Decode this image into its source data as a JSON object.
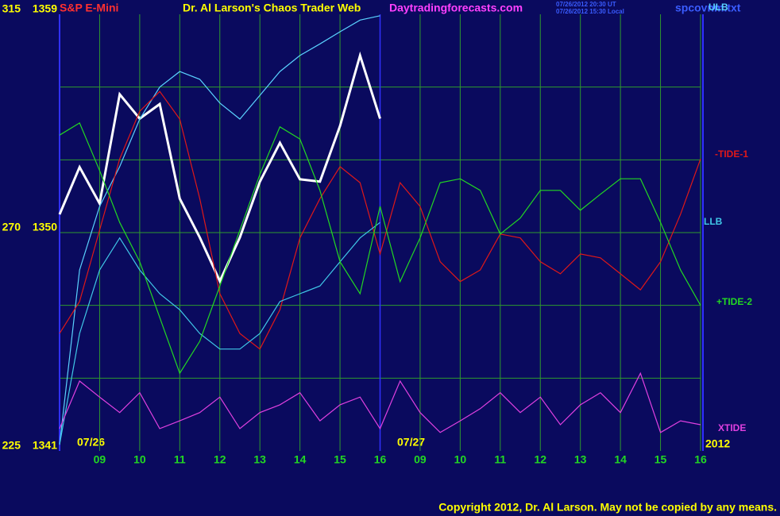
{
  "header": {
    "title": "Dr. Al Larson's Chaos Trader Web",
    "site": "Daytradingforecasts.com",
    "time_ut": "07/26/2012 20:30 UT",
    "time_local": "07/26/2012 15:30 Local",
    "file": "spcovnm.txt"
  },
  "footer": {
    "copyright": "Copyright 2012, Dr. Al Larson. May not be copied by any means."
  },
  "chart_data": {
    "type": "line",
    "annotations": {
      "day1": "07/26",
      "day2": "07/27",
      "year": "2012"
    },
    "x": [
      0,
      0.5,
      1,
      1.5,
      2,
      2.5,
      3,
      3.5,
      4,
      4.5,
      5,
      5.5,
      6,
      6.5,
      7,
      7.5,
      8,
      8.5,
      9,
      9.5,
      10,
      10.5,
      11,
      11.5,
      12,
      12.5,
      13,
      13.5,
      14,
      14.5,
      15,
      15.5,
      16
    ],
    "xlim": [
      0,
      16
    ],
    "xticks": [
      {
        "value": 1,
        "label": "09"
      },
      {
        "value": 2,
        "label": "10"
      },
      {
        "value": 3,
        "label": "11"
      },
      {
        "value": 4,
        "label": "12"
      },
      {
        "value": 5,
        "label": "13"
      },
      {
        "value": 6,
        "label": "14"
      },
      {
        "value": 7,
        "label": "15"
      },
      {
        "value": 8,
        "label": "16"
      },
      {
        "value": 9,
        "label": "09"
      },
      {
        "value": 10,
        "label": "10"
      },
      {
        "value": 11,
        "label": "11"
      },
      {
        "value": 12,
        "label": "12"
      },
      {
        "value": 13,
        "label": "13"
      },
      {
        "value": 14,
        "label": "14"
      },
      {
        "value": 15,
        "label": "15"
      },
      {
        "value": 16,
        "label": "16"
      }
    ],
    "ylim": [
      1341,
      1359
    ],
    "yticks": [
      1341,
      1350,
      1359
    ],
    "y2lim": [
      225,
      315
    ],
    "y2ticks": [
      225,
      270,
      315
    ],
    "grid": true,
    "series": [
      {
        "name": "S&P E-Mini",
        "color": "#ffffff",
        "values": [
          1350.75,
          1352.7,
          1351.2,
          1355.7,
          1354.7,
          1355.3,
          1351.4,
          1349.8,
          1348.0,
          1349.8,
          1352.1,
          1353.7,
          1352.2,
          1352.1,
          1354.4,
          1357.3,
          1354.7,
          null,
          null,
          null,
          null,
          null,
          null,
          null,
          null,
          null,
          null,
          null,
          null,
          null,
          null,
          null,
          null
        ]
      },
      {
        "name": "ULB",
        "color": "#5ad2ff",
        "axis": "y2",
        "values": [
          226.3,
          262.3,
          275.4,
          283.6,
          293.4,
          300,
          303.2,
          301.6,
          296.7,
          293.4,
          298.3,
          303.2,
          306.5,
          308.9,
          311.4,
          313.8,
          314.7,
          null,
          null,
          null,
          null,
          null,
          null,
          null,
          null,
          null,
          null,
          null,
          null,
          null,
          null,
          null,
          null
        ]
      },
      {
        "name": "-TIDE-1",
        "color": "#e01818",
        "axis": "y2",
        "values": [
          249.2,
          255.8,
          270.5,
          285.2,
          295,
          299.1,
          293.4,
          277,
          257.4,
          249.2,
          246,
          254.1,
          268.9,
          277,
          283.6,
          280.3,
          265.6,
          280.3,
          275.4,
          264,
          259.9,
          262.3,
          269.7,
          268.9,
          264,
          261.5,
          265.6,
          264.8,
          261.5,
          258.2,
          264,
          273.8,
          285.2
        ]
      },
      {
        "name": "LLB",
        "color": "#40c8e8",
        "axis": "y2",
        "values": [
          226.3,
          249.2,
          262.3,
          268.9,
          262.3,
          257.4,
          254.1,
          249.2,
          246,
          246,
          249.2,
          255.8,
          257.4,
          259,
          264,
          268.9,
          272.1,
          null,
          null,
          null,
          null,
          null,
          null,
          null,
          null,
          null,
          null,
          null,
          null,
          null,
          null,
          null,
          null
        ]
      },
      {
        "name": "+TIDE-2",
        "color": "#22d822",
        "axis": "y2",
        "values": [
          290.1,
          292.6,
          282.8,
          272.1,
          264,
          252.5,
          241,
          247.6,
          259,
          270.5,
          282,
          291.8,
          289.3,
          278.7,
          264,
          257.4,
          275.4,
          259.9,
          268.9,
          280.3,
          281.1,
          278.7,
          269.7,
          273,
          278.7,
          278.7,
          274.6,
          277.9,
          281.1,
          281.1,
          272.1,
          262.3,
          255
        ]
      },
      {
        "name": "XTIDE",
        "color": "#e040e0",
        "axis": "y2",
        "values": [
          229.6,
          239.4,
          236.1,
          232.9,
          237,
          229.6,
          231.2,
          232.9,
          236.1,
          229.6,
          232.9,
          234.5,
          237,
          231.2,
          234.5,
          236.1,
          229.6,
          239.4,
          232.9,
          228.8,
          231.2,
          233.7,
          237,
          232.9,
          236.1,
          230.4,
          234.5,
          237,
          232.9,
          241,
          228.8,
          231.2,
          230.4
        ]
      }
    ]
  }
}
